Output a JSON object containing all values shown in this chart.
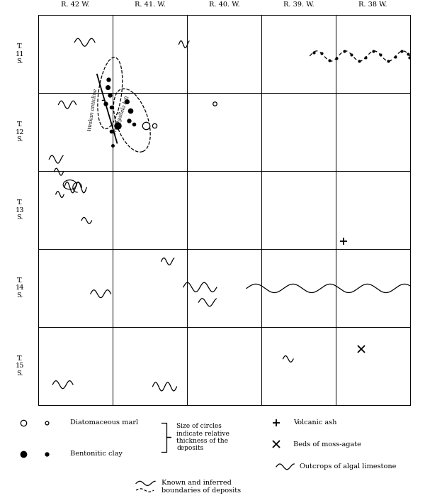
{
  "bg_color": "#ffffff",
  "range_labels": [
    "R. 42 W.",
    "R. 41. W.",
    "R. 40. W.",
    "R. 39. W.",
    "R. 38 W."
  ],
  "township_labels": [
    "T.\n11\nS.",
    "T.\n12\nS.",
    "T.\n13\nS.",
    "T.\n14\nS.",
    "T.\n15\nS."
  ],
  "legend": {
    "diat_marl_text": "Diatomaceous marl",
    "bent_clay_text": "Bentonitic clay",
    "size_text": "Size of circles\nindicate relative\nthickness of the\ndeposits",
    "volc_ash_text": "Volcanic ash",
    "moss_agate_text": "Beds of moss-agate",
    "algal_text": "Outcrops of algal limestone",
    "boundary_text": "Known and inferred\nboundaries of deposits"
  }
}
